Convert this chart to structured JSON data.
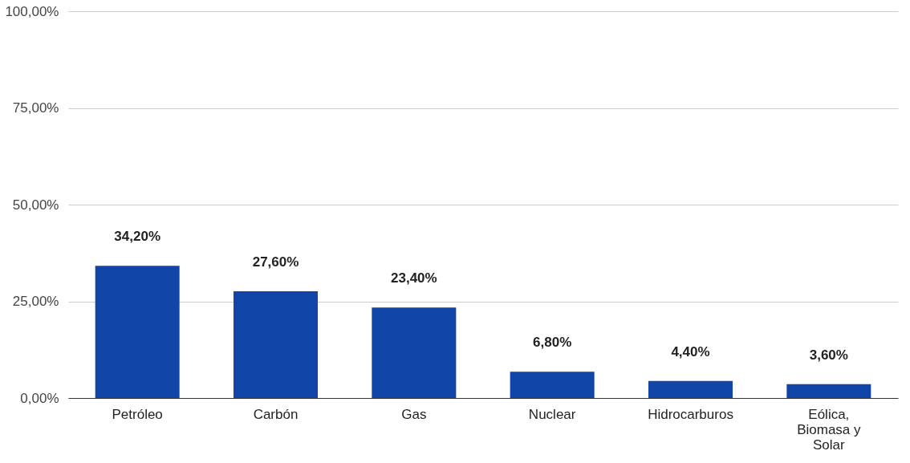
{
  "chart_data": {
    "type": "bar",
    "categories": [
      "Petróleo",
      "Carbón",
      "Gas",
      "Nuclear",
      "Hidrocarburos",
      "Eólica, Biomasa y Solar"
    ],
    "values": [
      34.2,
      27.6,
      23.4,
      6.8,
      4.4,
      3.6
    ],
    "value_labels": [
      "34,20%",
      "27,60%",
      "23,40%",
      "6,80%",
      "4,40%",
      "3,60%"
    ],
    "color": "#1245a8",
    "ylim": [
      0,
      100
    ],
    "yticks": [
      {
        "value": 0,
        "label": "0,00%"
      },
      {
        "value": 25,
        "label": "25,00%"
      },
      {
        "value": 50,
        "label": "50,00%"
      },
      {
        "value": 75,
        "label": "75,00%"
      },
      {
        "value": 100,
        "label": "100,00%"
      }
    ],
    "grid": "y"
  }
}
